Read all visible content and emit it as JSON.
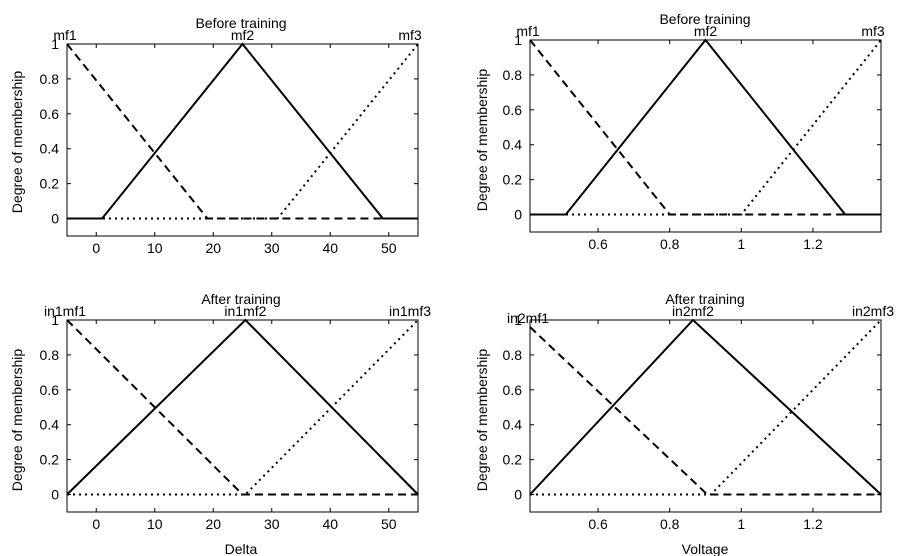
{
  "chart_data": [
    {
      "type": "line",
      "title": "Before training",
      "xlabel": "",
      "ylabel": "Degree of membership",
      "xlim": [
        -5,
        55
      ],
      "ylim": [
        -0.1,
        1.0
      ],
      "xticks": [
        "0",
        "10",
        "20",
        "30",
        "40",
        "50"
      ],
      "yticks": [
        "0",
        "0.2",
        "0.4",
        "0.6",
        "0.8",
        "1"
      ],
      "grid": false,
      "series": [
        {
          "name": "mf1",
          "style": "dashed",
          "x": [
            -5,
            19,
            55
          ],
          "y": [
            1,
            0,
            0
          ]
        },
        {
          "name": "mf2",
          "style": "solid",
          "x": [
            -5,
            1,
            25,
            49,
            55
          ],
          "y": [
            0,
            0,
            1,
            0,
            0
          ]
        },
        {
          "name": "mf3",
          "style": "dotted",
          "x": [
            -5,
            31,
            55
          ],
          "y": [
            0,
            0,
            1
          ]
        }
      ]
    },
    {
      "type": "line",
      "title": "Before training",
      "xlabel": "",
      "ylabel": "Degree of membership",
      "xlim": [
        0.41,
        1.39
      ],
      "ylim": [
        -0.1,
        1.0
      ],
      "xticks": [
        "0.6",
        "0.8",
        "1",
        "1.2"
      ],
      "yticks": [
        "0",
        "0.2",
        "0.4",
        "0.6",
        "0.8",
        "1"
      ],
      "grid": false,
      "series": [
        {
          "name": "mf1",
          "style": "dashed",
          "x": [
            0.41,
            0.8,
            1.39
          ],
          "y": [
            1,
            0,
            0
          ]
        },
        {
          "name": "mf2",
          "style": "solid",
          "x": [
            0.41,
            0.51,
            0.9,
            1.29,
            1.39
          ],
          "y": [
            0,
            0,
            1,
            0,
            0
          ]
        },
        {
          "name": "mf3",
          "style": "dotted",
          "x": [
            0.41,
            1.0,
            1.39
          ],
          "y": [
            0,
            0,
            1
          ]
        }
      ]
    },
    {
      "type": "line",
      "title": "After training",
      "xlabel": "Delta",
      "ylabel": "Degree of membership",
      "xlim": [
        -5,
        55
      ],
      "ylim": [
        -0.1,
        1.0
      ],
      "xticks": [
        "0",
        "10",
        "20",
        "30",
        "40",
        "50"
      ],
      "yticks": [
        "0",
        "0.2",
        "0.4",
        "0.6",
        "0.8",
        "1"
      ],
      "grid": false,
      "series": [
        {
          "name": "in1mf1",
          "style": "dashed",
          "x": [
            -5,
            25,
            55
          ],
          "y": [
            1,
            0,
            0
          ]
        },
        {
          "name": "in1mf2",
          "style": "solid",
          "x": [
            -5,
            25.5,
            55
          ],
          "y": [
            0,
            1,
            0
          ]
        },
        {
          "name": "in1mf3",
          "style": "dotted",
          "x": [
            -5,
            25.5,
            55
          ],
          "y": [
            0,
            0,
            1
          ]
        }
      ]
    },
    {
      "type": "line",
      "title": "After training",
      "xlabel": "Voltage",
      "ylabel": "Degree of membership",
      "xlim": [
        0.41,
        1.39
      ],
      "ylim": [
        -0.1,
        1.0
      ],
      "xticks": [
        "0.6",
        "0.8",
        "1",
        "1.2"
      ],
      "yticks": [
        "0",
        "0.2",
        "0.4",
        "0.6",
        "0.8",
        "1"
      ],
      "grid": false,
      "series": [
        {
          "name": "in2mf1",
          "style": "dashed",
          "x": [
            0.41,
            0.905,
            1.39
          ],
          "y": [
            0.96,
            0,
            0
          ]
        },
        {
          "name": "in2mf2",
          "style": "solid",
          "x": [
            0.41,
            0.865,
            1.39
          ],
          "y": [
            0,
            1,
            0
          ]
        },
        {
          "name": "in2mf3",
          "style": "dotted",
          "x": [
            0.41,
            0.915,
            1.39
          ],
          "y": [
            0,
            0,
            1
          ]
        }
      ]
    }
  ]
}
